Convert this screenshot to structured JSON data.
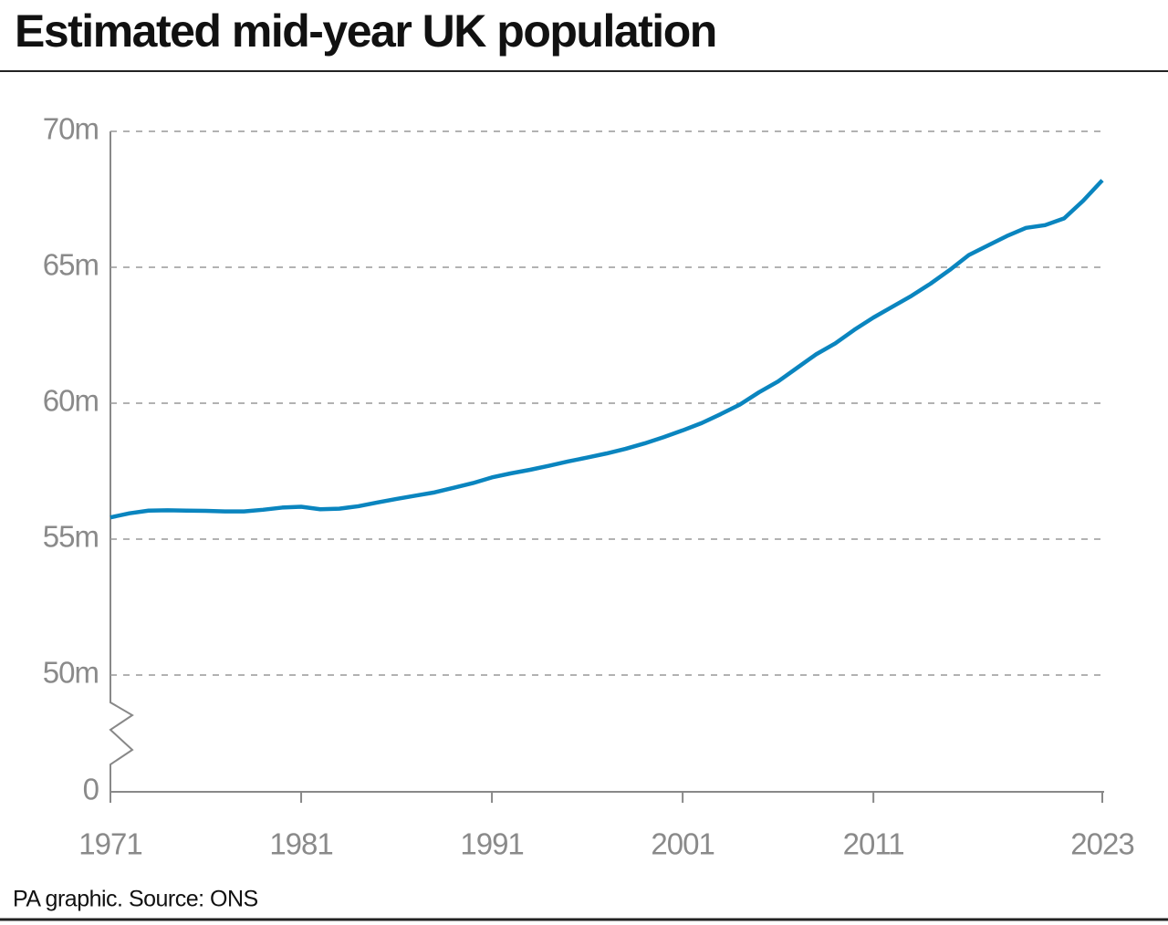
{
  "chart_data": {
    "type": "line",
    "title": "Estimated mid-year UK population",
    "source": "PA graphic. Source: ONS",
    "x": [
      1971,
      1972,
      1973,
      1974,
      1975,
      1976,
      1977,
      1978,
      1979,
      1980,
      1981,
      1982,
      1983,
      1984,
      1985,
      1986,
      1987,
      1988,
      1989,
      1990,
      1991,
      1992,
      1993,
      1994,
      1995,
      1996,
      1997,
      1998,
      1999,
      2000,
      2001,
      2002,
      2003,
      2004,
      2005,
      2006,
      2007,
      2008,
      2009,
      2010,
      2011,
      2012,
      2013,
      2014,
      2015,
      2016,
      2017,
      2018,
      2019,
      2020,
      2021,
      2022,
      2023
    ],
    "values": [
      55.8,
      55.95,
      56.05,
      56.06,
      56.05,
      56.04,
      56.02,
      56.02,
      56.08,
      56.16,
      56.19,
      56.1,
      56.12,
      56.21,
      56.35,
      56.48,
      56.6,
      56.72,
      56.89,
      57.06,
      57.27,
      57.42,
      57.55,
      57.7,
      57.86,
      58.0,
      58.15,
      58.32,
      58.52,
      58.75,
      59.0,
      59.27,
      59.6,
      59.95,
      60.4,
      60.8,
      61.3,
      61.8,
      62.2,
      62.7,
      63.15,
      63.55,
      63.95,
      64.4,
      64.9,
      65.45,
      65.8,
      66.15,
      66.45,
      66.55,
      66.8,
      67.45,
      68.2
    ],
    "color": "#0a85bf",
    "xlim": [
      1971,
      2023
    ],
    "xticks": [
      1971,
      1981,
      1991,
      2001,
      2011,
      2023
    ],
    "ylim": [
      0,
      70
    ],
    "yticks": [
      0,
      {
        "value": 50,
        "label": "50m"
      },
      {
        "value": 55,
        "label": "55m"
      },
      {
        "value": 60,
        "label": "60m"
      },
      {
        "value": 65,
        "label": "65m"
      },
      {
        "value": 70,
        "label": "70m"
      }
    ],
    "axis_break": true,
    "grid": true
  }
}
